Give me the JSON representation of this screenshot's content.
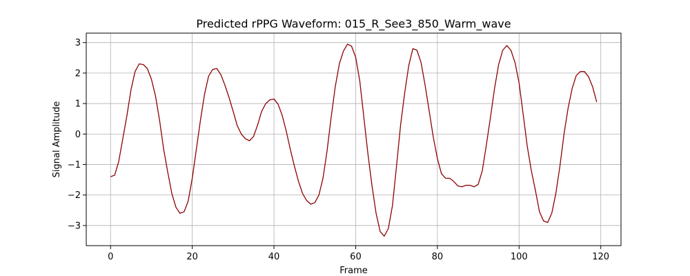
{
  "chart_data": {
    "type": "line",
    "title": "Predicted rPPG Waveform: 015_R_See3_850_Warm_wave",
    "xlabel": "Frame",
    "ylabel": "Signal Amplitude",
    "xlim": [
      -5.95,
      124.95
    ],
    "ylim": [
      -3.66,
      3.31
    ],
    "xticks": [
      0,
      20,
      40,
      60,
      80,
      100,
      120
    ],
    "yticks": [
      -3,
      -2,
      -1,
      0,
      1,
      2,
      3
    ],
    "grid": true,
    "color": "#8b0000",
    "series": [
      {
        "x": [
          0,
          1,
          2,
          3,
          4,
          5,
          6,
          7,
          8,
          9,
          10,
          11,
          12,
          13,
          14,
          15,
          16,
          17,
          18,
          19,
          20,
          21,
          22,
          23,
          24,
          25,
          26,
          27,
          28,
          29,
          30,
          31,
          32,
          33,
          34,
          35,
          36,
          37,
          38,
          39,
          40,
          41,
          42,
          43,
          44,
          45,
          46,
          47,
          48,
          49,
          50,
          51,
          52,
          53,
          54,
          55,
          56,
          57,
          58,
          59,
          60,
          61,
          62,
          63,
          64,
          65,
          66,
          67,
          68,
          69,
          70,
          71,
          72,
          73,
          74,
          75,
          76,
          77,
          78,
          79,
          80,
          81,
          82,
          83,
          84,
          85,
          86,
          87,
          88,
          89,
          90,
          91,
          92,
          93,
          94,
          95,
          96,
          97,
          98,
          99,
          100,
          101,
          102,
          103,
          104,
          105,
          106,
          107,
          108,
          109,
          110,
          111,
          112,
          113,
          114,
          115,
          116,
          117,
          118,
          119
        ],
        "values": [
          -1.4,
          -1.35,
          -0.9,
          -0.15,
          0.6,
          1.45,
          2.05,
          2.3,
          2.28,
          2.15,
          1.8,
          1.25,
          0.45,
          -0.5,
          -1.25,
          -1.95,
          -2.4,
          -2.6,
          -2.55,
          -2.2,
          -1.45,
          -0.5,
          0.45,
          1.3,
          1.9,
          2.12,
          2.15,
          1.95,
          1.6,
          1.2,
          0.75,
          0.28,
          0.0,
          -0.15,
          -0.22,
          -0.08,
          0.3,
          0.75,
          1.0,
          1.12,
          1.15,
          0.98,
          0.62,
          0.1,
          -0.5,
          -1.05,
          -1.55,
          -1.95,
          -2.18,
          -2.3,
          -2.25,
          -2.0,
          -1.45,
          -0.55,
          0.55,
          1.55,
          2.3,
          2.72,
          2.95,
          2.88,
          2.52,
          1.75,
          0.55,
          -0.65,
          -1.7,
          -2.6,
          -3.2,
          -3.35,
          -3.1,
          -2.35,
          -1.05,
          0.3,
          1.35,
          2.25,
          2.8,
          2.75,
          2.35,
          1.6,
          0.75,
          -0.1,
          -0.8,
          -1.3,
          -1.45,
          -1.45,
          -1.55,
          -1.7,
          -1.73,
          -1.68,
          -1.68,
          -1.73,
          -1.65,
          -1.2,
          -0.35,
          0.55,
          1.5,
          2.28,
          2.75,
          2.9,
          2.75,
          2.35,
          1.68,
          0.65,
          -0.4,
          -1.2,
          -1.85,
          -2.55,
          -2.85,
          -2.9,
          -2.6,
          -1.95,
          -1.05,
          0.0,
          0.85,
          1.5,
          1.92,
          2.05,
          2.05,
          1.88,
          1.55,
          1.05
        ]
      }
    ]
  }
}
